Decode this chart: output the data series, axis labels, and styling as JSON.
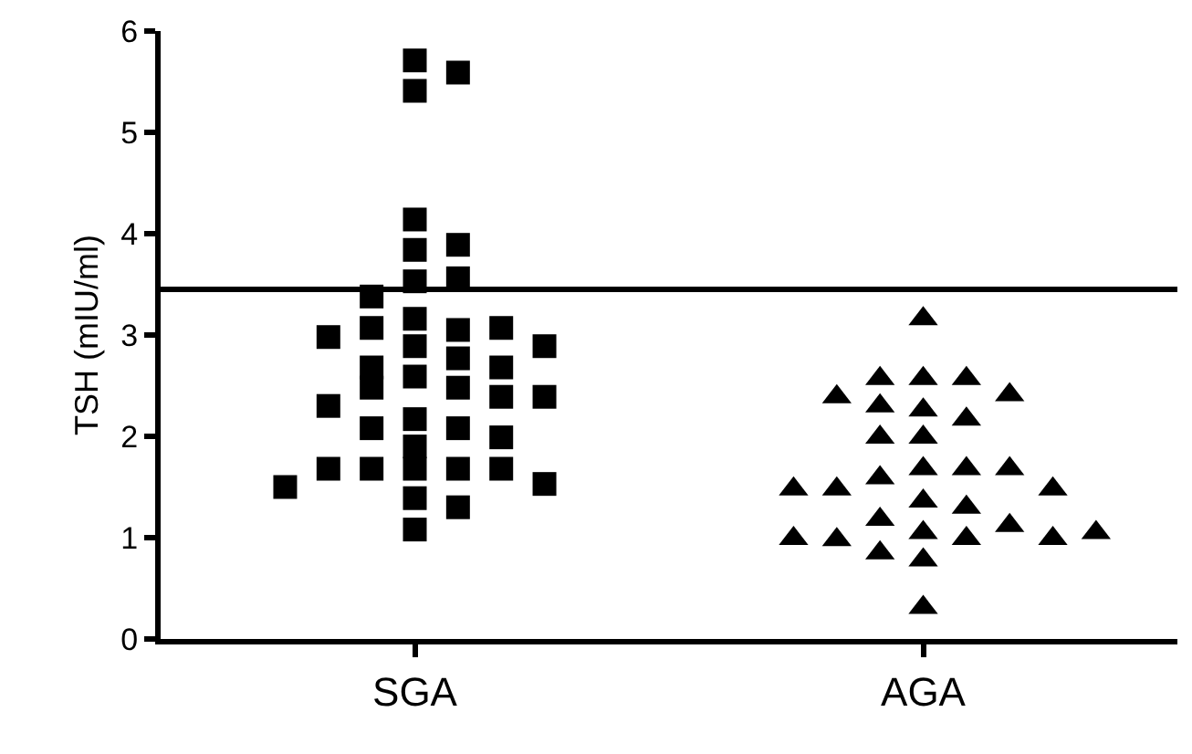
{
  "chart_data": {
    "type": "scatter",
    "ylabel": "TSH (mIU/ml)",
    "categories": [
      "SGA",
      "AGA"
    ],
    "ylim": [
      0,
      6
    ],
    "yticks": [
      0,
      1,
      2,
      3,
      4,
      5,
      6
    ],
    "ref_lines": [
      {
        "axis": "y",
        "value": 3.45,
        "color": "#000000"
      }
    ],
    "series": [
      {
        "color": "#000000",
        "marker": "square",
        "x": [
          "SGA",
          "SGA",
          "SGA",
          "SGA",
          "SGA",
          "SGA",
          "SGA",
          "SGA",
          "SGA",
          "SGA",
          "SGA",
          "SGA",
          "SGA",
          "SGA",
          "SGA",
          "SGA",
          "SGA",
          "SGA",
          "SGA",
          "SGA",
          "SGA",
          "SGA",
          "SGA",
          "SGA",
          "SGA",
          "SGA",
          "SGA",
          "SGA",
          "SGA",
          "SGA",
          "SGA",
          "SGA",
          "SGA",
          "SGA",
          "SGA",
          "SGA",
          "SGA",
          "SGA",
          "SGA",
          "SGA"
        ],
        "values": [
          5.71,
          5.59,
          5.41,
          4.14,
          3.84,
          3.89,
          3.53,
          3.56,
          3.38,
          3.16,
          3.05,
          3.07,
          3.07,
          2.89,
          2.98,
          2.89,
          2.59,
          2.48,
          2.77,
          2.68,
          2.68,
          2.48,
          2.17,
          2.39,
          2.3,
          2.39,
          2.08,
          2.08,
          1.9,
          1.99,
          1.68,
          1.68,
          1.68,
          1.68,
          1.68,
          1.53,
          1.39,
          1.5,
          1.3,
          1.08
        ]
      },
      {
        "color": "#000000",
        "marker": "triangle",
        "x": [
          "AGA",
          "AGA",
          "AGA",
          "AGA",
          "AGA",
          "AGA",
          "AGA",
          "AGA",
          "AGA",
          "AGA",
          "AGA",
          "AGA",
          "AGA",
          "AGA",
          "AGA",
          "AGA",
          "AGA",
          "AGA",
          "AGA",
          "AGA",
          "AGA",
          "AGA",
          "AGA",
          "AGA",
          "AGA",
          "AGA",
          "AGA",
          "AGA",
          "AGA",
          "AGA",
          "AGA"
        ],
        "values": [
          3.16,
          2.57,
          2.57,
          2.57,
          2.41,
          2.39,
          2.26,
          2.17,
          2.3,
          1.99,
          1.99,
          1.68,
          1.68,
          1.59,
          1.68,
          1.48,
          1.36,
          1.48,
          1.48,
          1.3,
          1.18,
          1.05,
          0.99,
          1.12,
          0.98,
          0.99,
          0.99,
          1.05,
          0.78,
          0.85,
          0.31
        ]
      }
    ]
  }
}
